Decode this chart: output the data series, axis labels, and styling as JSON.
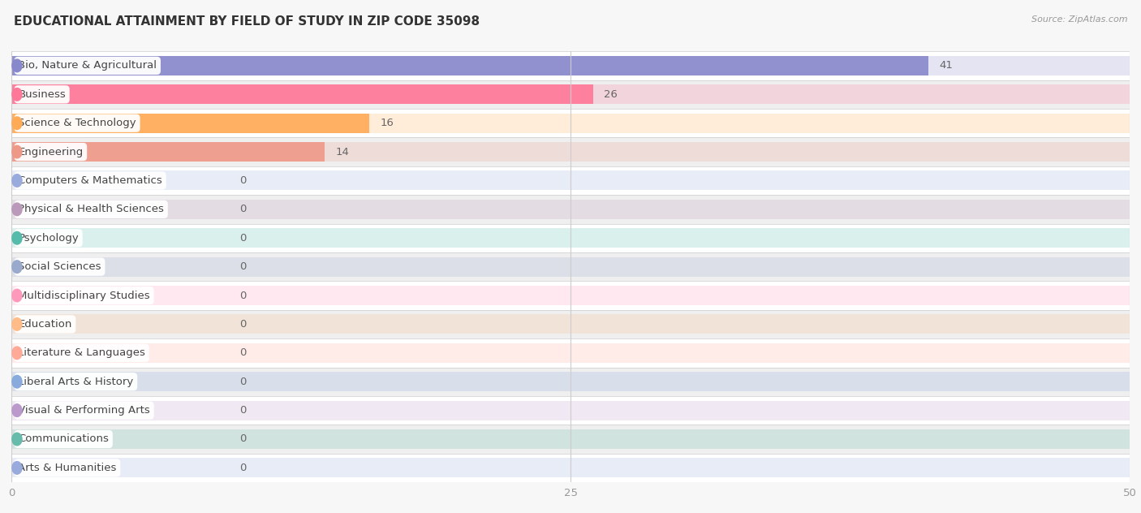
{
  "title": "EDUCATIONAL ATTAINMENT BY FIELD OF STUDY IN ZIP CODE 35098",
  "source": "Source: ZipAtlas.com",
  "categories": [
    "Bio, Nature & Agricultural",
    "Business",
    "Science & Technology",
    "Engineering",
    "Computers & Mathematics",
    "Physical & Health Sciences",
    "Psychology",
    "Social Sciences",
    "Multidisciplinary Studies",
    "Education",
    "Literature & Languages",
    "Liberal Arts & History",
    "Visual & Performing Arts",
    "Communications",
    "Arts & Humanities"
  ],
  "values": [
    41,
    26,
    16,
    14,
    0,
    0,
    0,
    0,
    0,
    0,
    0,
    0,
    0,
    0,
    0
  ],
  "bar_colors": [
    "#8888cc",
    "#ff7799",
    "#ffaa55",
    "#ee9988",
    "#99aadd",
    "#bb99bb",
    "#55bbaa",
    "#99aacc",
    "#ff99bb",
    "#ffbb88",
    "#ffaa99",
    "#88aadd",
    "#bb99cc",
    "#66bbaa",
    "#99aadd"
  ],
  "xlim": [
    0,
    50
  ],
  "xticks": [
    0,
    25,
    50
  ],
  "background_color": "#f7f7f7",
  "title_fontsize": 11,
  "label_fontsize": 9.5,
  "value_fontsize": 9.5
}
